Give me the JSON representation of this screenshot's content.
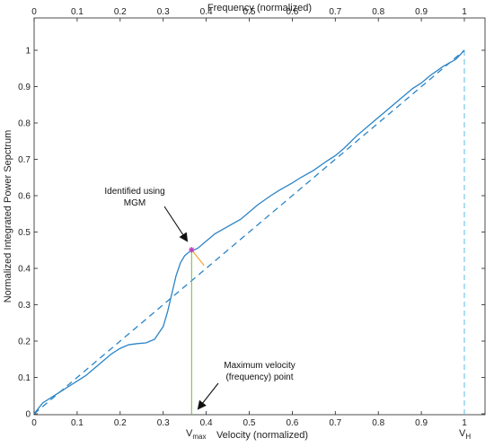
{
  "colors": {
    "curve": "#2a84c6",
    "diagonal": "#2a84c6",
    "vmax_line": "#6bbf3a",
    "vh_line": "#5bb8e8",
    "tangent": "#f2a93b",
    "marker": "#c03cc0",
    "axis": "#222222",
    "arrow": "#111111"
  },
  "chart_data": {
    "type": "line",
    "title": "",
    "xlabel": "Velocity (normalized)",
    "x2label": "Frequency (normalized)",
    "ylabel": "Normalized Integrated Power Sepctrum",
    "xlim": [
      0,
      1.05
    ],
    "ylim": [
      0,
      1.0
    ],
    "grid": false,
    "xticks": [
      0,
      0.1,
      0.2,
      0.3,
      0.4,
      0.5,
      0.6,
      0.7,
      0.8,
      0.9,
      1
    ],
    "xtick_labels": [
      "0",
      "0.1",
      "0.2",
      "0.3",
      "0.4",
      "0.5",
      "0.6",
      "0.7",
      "0.8",
      "0.9",
      "1"
    ],
    "yticks": [
      0,
      0.1,
      0.2,
      0.3,
      0.4,
      0.5,
      0.6,
      0.7,
      0.8,
      0.9,
      1
    ],
    "ytick_labels": [
      "0",
      "0.1",
      "0.2",
      "0.3",
      "0.4",
      "0.5",
      "0.6",
      "0.7",
      "0.8",
      "0.9",
      "1"
    ],
    "series": [
      {
        "style": "solid",
        "x": [
          0,
          0.01,
          0.02,
          0.04,
          0.06,
          0.08,
          0.1,
          0.12,
          0.14,
          0.16,
          0.18,
          0.2,
          0.22,
          0.24,
          0.26,
          0.28,
          0.3,
          0.31,
          0.32,
          0.33,
          0.34,
          0.35,
          0.36,
          0.37,
          0.38,
          0.4,
          0.42,
          0.45,
          0.48,
          0.5,
          0.52,
          0.55,
          0.57,
          0.6,
          0.62,
          0.65,
          0.68,
          0.7,
          0.72,
          0.75,
          0.78,
          0.8,
          0.83,
          0.85,
          0.88,
          0.9,
          0.92,
          0.95,
          0.98,
          1.0
        ],
        "y": [
          0.0,
          0.015,
          0.03,
          0.045,
          0.06,
          0.075,
          0.09,
          0.105,
          0.125,
          0.145,
          0.165,
          0.18,
          0.19,
          0.193,
          0.195,
          0.205,
          0.24,
          0.28,
          0.33,
          0.38,
          0.415,
          0.435,
          0.445,
          0.45,
          0.455,
          0.475,
          0.495,
          0.515,
          0.535,
          0.555,
          0.575,
          0.6,
          0.615,
          0.635,
          0.65,
          0.67,
          0.695,
          0.71,
          0.73,
          0.765,
          0.795,
          0.815,
          0.845,
          0.865,
          0.895,
          0.91,
          0.93,
          0.955,
          0.975,
          1.0
        ]
      },
      {
        "style": "dashed",
        "x": [
          0,
          1
        ],
        "y": [
          0,
          1
        ]
      }
    ],
    "vmax_x": 0.366,
    "vmax_y": 0.451,
    "vh_x": 1.0,
    "tangent": {
      "x": [
        0.366,
        0.395
      ],
      "y": [
        0.451,
        0.408
      ]
    },
    "annotations": [
      {
        "text_lines": [
          "Identified using",
          "MGM"
        ]
      },
      {
        "text_lines": [
          "Maximum velocity",
          "(frequency) point"
        ]
      }
    ],
    "bottom_labels": {
      "vmax_main": "V",
      "vmax_sub": "max",
      "vh_main": "V",
      "vh_sub": "H"
    }
  }
}
